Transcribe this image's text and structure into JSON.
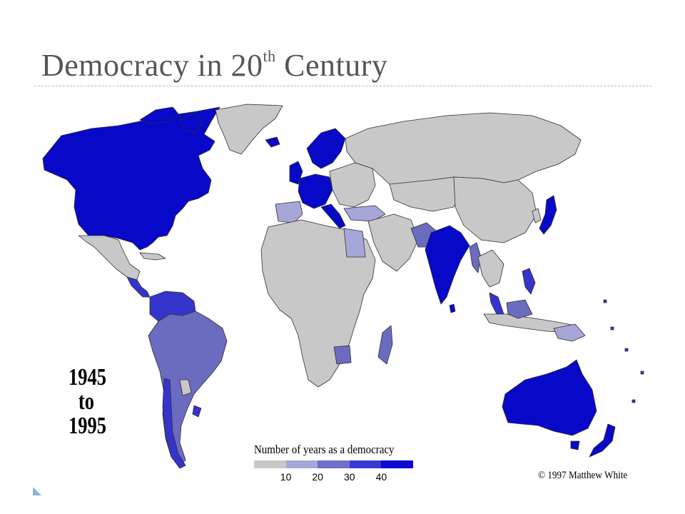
{
  "slide": {
    "title_main": "Democracy in 20",
    "title_sup": "th",
    "title_end": " Century"
  },
  "map": {
    "period_start": "1945",
    "period_to": "to",
    "period_end": "1995",
    "legend_title": "Number of years as a democracy",
    "legend_ticks": [
      "10",
      "20",
      "30",
      "40"
    ],
    "legend_colors": [
      "#c8c8c8",
      "#a6a6d8",
      "#7070c8",
      "#3a3ad0",
      "#0a0ad0"
    ],
    "copyright": "© 1997 Matthew White"
  },
  "colors": {
    "land_none": "#c8c8c8",
    "level_1": "#a6a6d8",
    "level_2": "#6b6bc0",
    "level_3": "#3434cc",
    "level_4": "#0808c8",
    "border": "#303030"
  }
}
